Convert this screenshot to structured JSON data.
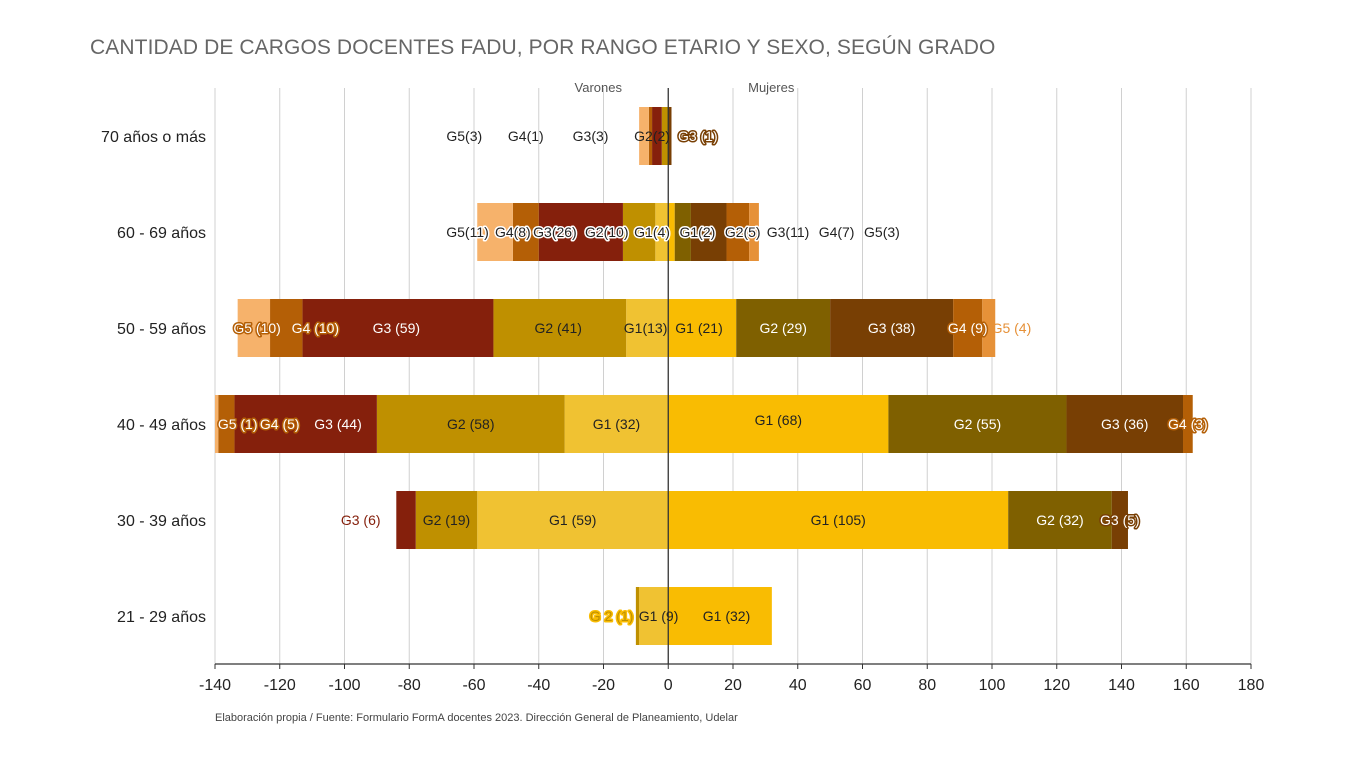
{
  "title": "CANTIDAD DE CARGOS DOCENTES FADU, POR RANGO ETARIO Y SEXO, SEGÚN GRADO",
  "source": "Elaboración propia / Fuente: Formulario FormA docentes 2023. Dirección General de Planeamiento, Udelar",
  "chart_data": {
    "type": "bar",
    "orientation": "horizontal",
    "stacked": true,
    "diverging": true,
    "title": "CANTIDAD DE CARGOS DOCENTES FADU, POR RANGO ETARIO Y SEXO, SEGÚN GRADO",
    "side_labels": {
      "left": "Varones",
      "right": "Mujeres"
    },
    "xlim": [
      -140,
      180
    ],
    "xticks": [
      -140,
      -120,
      -100,
      -80,
      -60,
      -40,
      -20,
      0,
      20,
      40,
      60,
      80,
      100,
      120,
      140,
      160,
      180
    ],
    "grid": true,
    "categories": [
      "70 años o más",
      "60 - 69 años",
      "50 - 59 años",
      "40 - 49 años",
      "30 - 39 años",
      "21 - 29 años"
    ],
    "series": [
      {
        "name": "G1 Varones",
        "color": "#F0C232",
        "values": [
          0,
          -4,
          -13,
          -32,
          -59,
          -9
        ],
        "labels": [
          "",
          "G1(4)",
          "G1(13)",
          "G1 (32)",
          "G1 (59)",
          "G1 (9)"
        ]
      },
      {
        "name": "G2 Varones",
        "color": "#BF9000",
        "values": [
          -2,
          -10,
          -41,
          -58,
          -19,
          -1
        ],
        "labels": [
          "G2(2)",
          "G2(10)",
          "G2 (41)",
          "G2 (58)",
          "G2 (19)",
          "G 2 (1)"
        ]
      },
      {
        "name": "G3 Varones",
        "color": "#85200C",
        "values": [
          -3,
          -26,
          -59,
          -44,
          -6,
          0
        ],
        "labels": [
          "G3(3)",
          "G3(26)",
          "G3 (59)",
          "G3 (44)",
          "G3 (6)",
          ""
        ]
      },
      {
        "name": "G4 Varones",
        "color": "#B45F06",
        "values": [
          -1,
          -8,
          -10,
          -5,
          0,
          0
        ],
        "labels": [
          "G4(1)",
          "G4(8)",
          "G4 (10)",
          "G4 (5)",
          "",
          ""
        ]
      },
      {
        "name": "G5 Varones",
        "color": "#F6B26B",
        "values": [
          -3,
          -11,
          -10,
          -1,
          0,
          0
        ],
        "labels": [
          "G5(3)",
          "G5(11)",
          "G5 (10)",
          "G5 (1)",
          "",
          ""
        ]
      },
      {
        "name": "G1 Mujeres",
        "color": "#F9BC02",
        "values": [
          0,
          2,
          21,
          68,
          105,
          32
        ],
        "labels": [
          "",
          "G1(2)",
          "G1 (21)",
          "G1 (68)",
          "G1 (105)",
          "G1 (32)"
        ]
      },
      {
        "name": "G2 Mujeres",
        "color": "#7F6000",
        "values": [
          0,
          5,
          29,
          55,
          32,
          0
        ],
        "labels": [
          "",
          "G2(5)",
          "G2 (29)",
          "G2 (55)",
          "G2 (32)",
          ""
        ]
      },
      {
        "name": "G3 Mujeres",
        "color": "#783F04",
        "values": [
          1,
          11,
          38,
          36,
          5,
          0
        ],
        "labels": [
          "G3 (1)",
          "G3(11)",
          "G3 (38)",
          "G3 (36)",
          "G3 (5)",
          ""
        ]
      },
      {
        "name": "G4 Mujeres",
        "color": "#B45F06",
        "values": [
          0,
          7,
          9,
          3,
          0,
          0
        ],
        "labels": [
          "",
          "G4(7)",
          "G4  (9)",
          "G4 (3)",
          "",
          ""
        ]
      },
      {
        "name": "G5 Mujeres",
        "color": "#E69138",
        "values": [
          0,
          3,
          4,
          0,
          0,
          0
        ],
        "labels": [
          "",
          "G5(3)",
          "G5 (4)",
          "",
          "",
          ""
        ]
      }
    ]
  }
}
